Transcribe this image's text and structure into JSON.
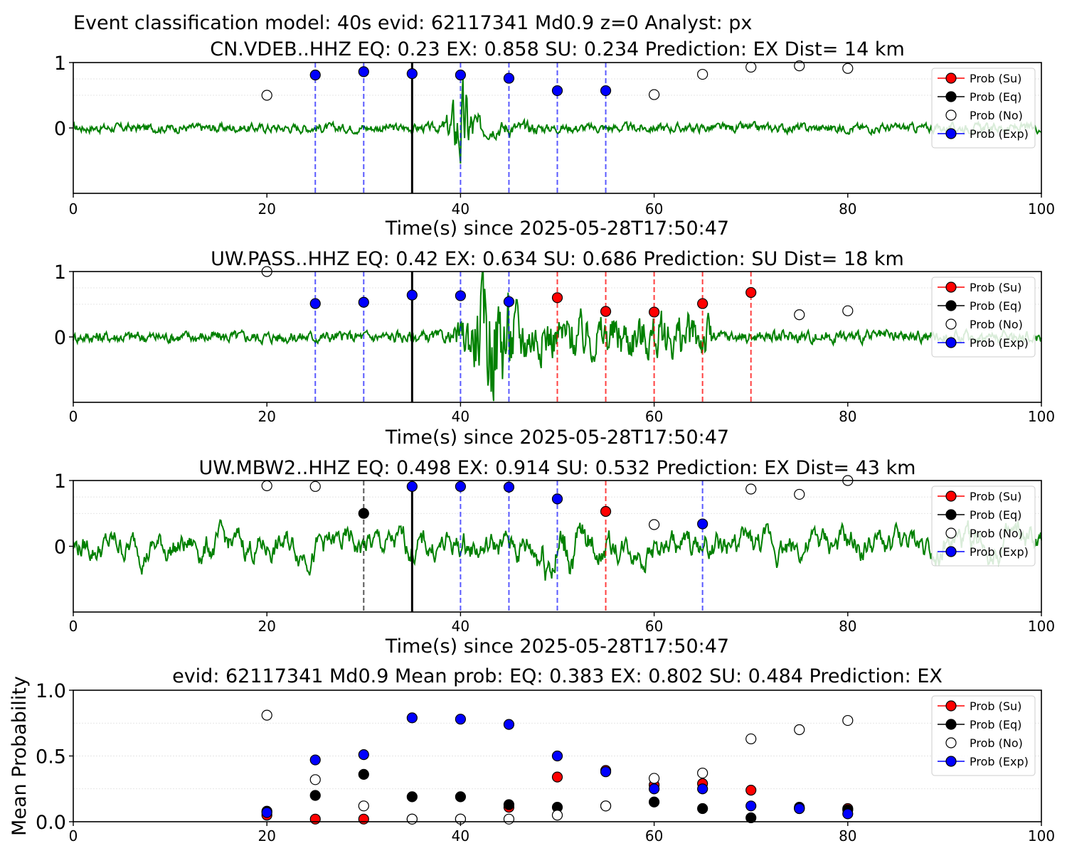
{
  "page_title": "Event classification model: 40s evid: 62117341 Md0.9 z=0 Analyst: px",
  "legend": [
    {
      "label": "Prob (Su)",
      "color": "#ff0000"
    },
    {
      "label": "Prob (Eq)",
      "color": "#000000"
    },
    {
      "label": "Prob (No)",
      "color": "#ffffff"
    },
    {
      "label": "Prob (Exp)",
      "color": "#0000ff"
    }
  ],
  "colors": {
    "trace": "#008000",
    "su": "#ff0000",
    "eq": "#000000",
    "no": "#ffffff",
    "exp": "#0000ff",
    "pick": "#000000"
  },
  "chart_data": [
    {
      "type": "scatter",
      "title": "CN.VDEB..HHZ   EQ: 0.23  EX: 0.858  SU: 0.234   Prediction: EX    Dist= 14 km",
      "xlabel": "Time(s) since 2025-05-28T17:50:47",
      "ylabel": "",
      "xlim": [
        0,
        100
      ],
      "x_ticks": [
        "0",
        "20",
        "40",
        "60",
        "80",
        "100"
      ],
      "y_ticks": [
        "0",
        "1"
      ],
      "pick_time": 35,
      "vlines": [
        {
          "x": 25,
          "class": "exp"
        },
        {
          "x": 30,
          "class": "exp"
        },
        {
          "x": 40,
          "class": "exp"
        },
        {
          "x": 45,
          "class": "exp"
        },
        {
          "x": 50,
          "class": "exp"
        },
        {
          "x": 55,
          "class": "exp"
        }
      ],
      "points": [
        {
          "x": 20,
          "y": 0.5,
          "class": "no"
        },
        {
          "x": 25,
          "y": 0.81,
          "class": "exp"
        },
        {
          "x": 30,
          "y": 0.86,
          "class": "exp"
        },
        {
          "x": 35,
          "y": 0.83,
          "class": "exp"
        },
        {
          "x": 40,
          "y": 0.81,
          "class": "exp"
        },
        {
          "x": 45,
          "y": 0.76,
          "class": "exp"
        },
        {
          "x": 50,
          "y": 0.57,
          "class": "exp"
        },
        {
          "x": 55,
          "y": 0.57,
          "class": "exp"
        },
        {
          "x": 60,
          "y": 0.51,
          "class": "no"
        },
        {
          "x": 65,
          "y": 0.82,
          "class": "no"
        },
        {
          "x": 70,
          "y": 0.93,
          "class": "no"
        },
        {
          "x": 75,
          "y": 0.95,
          "class": "no"
        },
        {
          "x": 80,
          "y": 0.91,
          "class": "no"
        }
      ]
    },
    {
      "type": "scatter",
      "title": "UW.PASS..HHZ   EQ: 0.42  EX: 0.634  SU: 0.686   Prediction: SU    Dist= 18 km",
      "xlabel": "Time(s) since 2025-05-28T17:50:47",
      "ylabel": "",
      "xlim": [
        0,
        100
      ],
      "x_ticks": [
        "0",
        "20",
        "40",
        "60",
        "80",
        "100"
      ],
      "y_ticks": [
        "0",
        "1"
      ],
      "pick_time": 35,
      "vlines": [
        {
          "x": 25,
          "class": "exp"
        },
        {
          "x": 30,
          "class": "exp"
        },
        {
          "x": 40,
          "class": "exp"
        },
        {
          "x": 45,
          "class": "exp"
        },
        {
          "x": 50,
          "class": "su"
        },
        {
          "x": 55,
          "class": "su"
        },
        {
          "x": 60,
          "class": "su"
        },
        {
          "x": 65,
          "class": "su"
        },
        {
          "x": 70,
          "class": "su"
        }
      ],
      "points": [
        {
          "x": 20,
          "y": 1.0,
          "class": "no"
        },
        {
          "x": 25,
          "y": 0.51,
          "class": "exp"
        },
        {
          "x": 30,
          "y": 0.53,
          "class": "exp"
        },
        {
          "x": 35,
          "y": 0.64,
          "class": "exp"
        },
        {
          "x": 40,
          "y": 0.63,
          "class": "exp"
        },
        {
          "x": 45,
          "y": 0.54,
          "class": "exp"
        },
        {
          "x": 50,
          "y": 0.6,
          "class": "su"
        },
        {
          "x": 55,
          "y": 0.39,
          "class": "su"
        },
        {
          "x": 60,
          "y": 0.38,
          "class": "su"
        },
        {
          "x": 65,
          "y": 0.51,
          "class": "su"
        },
        {
          "x": 70,
          "y": 0.68,
          "class": "su"
        },
        {
          "x": 75,
          "y": 0.34,
          "class": "no"
        },
        {
          "x": 80,
          "y": 0.4,
          "class": "no"
        }
      ]
    },
    {
      "type": "scatter",
      "title": "UW.MBW2..HHZ   EQ: 0.498  EX: 0.914  SU: 0.532   Prediction: EX    Dist= 43 km",
      "xlabel": "Time(s) since 2025-05-28T17:50:47",
      "ylabel": "",
      "xlim": [
        0,
        100
      ],
      "x_ticks": [
        "0",
        "20",
        "40",
        "60",
        "80",
        "100"
      ],
      "y_ticks": [
        "0",
        "1"
      ],
      "pick_time": 35,
      "vlines": [
        {
          "x": 30,
          "class": "eq"
        },
        {
          "x": 40,
          "class": "exp"
        },
        {
          "x": 45,
          "class": "exp"
        },
        {
          "x": 50,
          "class": "exp"
        },
        {
          "x": 55,
          "class": "su"
        },
        {
          "x": 65,
          "class": "exp"
        }
      ],
      "points": [
        {
          "x": 20,
          "y": 0.92,
          "class": "no"
        },
        {
          "x": 25,
          "y": 0.91,
          "class": "no"
        },
        {
          "x": 30,
          "y": 0.5,
          "class": "eq"
        },
        {
          "x": 35,
          "y": 0.91,
          "class": "exp"
        },
        {
          "x": 40,
          "y": 0.91,
          "class": "exp"
        },
        {
          "x": 45,
          "y": 0.9,
          "class": "exp"
        },
        {
          "x": 50,
          "y": 0.72,
          "class": "exp"
        },
        {
          "x": 55,
          "y": 0.53,
          "class": "su"
        },
        {
          "x": 60,
          "y": 0.33,
          "class": "no"
        },
        {
          "x": 65,
          "y": 0.34,
          "class": "exp"
        },
        {
          "x": 70,
          "y": 0.87,
          "class": "no"
        },
        {
          "x": 75,
          "y": 0.79,
          "class": "no"
        },
        {
          "x": 80,
          "y": 1.0,
          "class": "no"
        }
      ]
    },
    {
      "type": "scatter",
      "title": "evid: 62117341  Md0.9   Mean prob:   EQ: 0.383  EX: 0.802  SU: 0.484   Prediction: EX",
      "xlabel": "",
      "ylabel": "Mean Probability",
      "xlim": [
        0,
        100
      ],
      "ylim": [
        0,
        1
      ],
      "x_ticks": [
        "0",
        "20",
        "40",
        "60",
        "80",
        "100"
      ],
      "y_ticks": [
        "0.0",
        "0.5",
        "1.0"
      ],
      "series": [
        {
          "name": "Prob (Su)",
          "x": [
            20,
            25,
            30,
            35,
            40,
            45,
            50,
            55,
            60,
            65,
            70,
            75,
            80
          ],
          "values": [
            0.05,
            0.02,
            0.02,
            0.02,
            0.02,
            0.11,
            0.34,
            0.39,
            0.28,
            0.29,
            0.24,
            0.1,
            0.1
          ]
        },
        {
          "name": "Prob (Eq)",
          "x": [
            20,
            25,
            30,
            35,
            40,
            45,
            50,
            55,
            60,
            65,
            70,
            75,
            80
          ],
          "values": [
            0.08,
            0.2,
            0.36,
            0.19,
            0.19,
            0.13,
            0.11,
            0.12,
            0.15,
            0.1,
            0.03,
            0.11,
            0.09
          ]
        },
        {
          "name": "Prob (No)",
          "x": [
            20,
            25,
            30,
            35,
            40,
            45,
            50,
            55,
            60,
            65,
            70,
            75,
            80
          ],
          "values": [
            0.81,
            0.32,
            0.12,
            0.02,
            0.02,
            0.02,
            0.05,
            0.12,
            0.33,
            0.37,
            0.63,
            0.7,
            0.77
          ]
        },
        {
          "name": "Prob (Exp)",
          "x": [
            20,
            25,
            30,
            35,
            40,
            45,
            50,
            55,
            60,
            65,
            70,
            75,
            80
          ],
          "values": [
            0.07,
            0.47,
            0.51,
            0.79,
            0.78,
            0.74,
            0.5,
            0.38,
            0.25,
            0.25,
            0.12,
            0.1,
            0.06
          ]
        }
      ]
    }
  ]
}
